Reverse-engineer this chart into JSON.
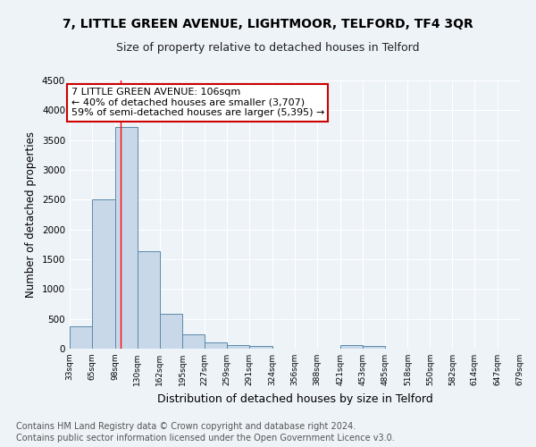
{
  "title1": "7, LITTLE GREEN AVENUE, LIGHTMOOR, TELFORD, TF4 3QR",
  "title2": "Size of property relative to detached houses in Telford",
  "xlabel": "Distribution of detached houses by size in Telford",
  "ylabel": "Number of detached properties",
  "footnote1": "Contains HM Land Registry data © Crown copyright and database right 2024.",
  "footnote2": "Contains public sector information licensed under the Open Government Licence v3.0.",
  "bar_edges": [
    33,
    65,
    98,
    130,
    162,
    195,
    227,
    259,
    291,
    324,
    356,
    388,
    421,
    453,
    485,
    518,
    550,
    582,
    614,
    647,
    679
  ],
  "bar_heights": [
    370,
    2510,
    3720,
    1630,
    590,
    240,
    100,
    60,
    50,
    0,
    0,
    0,
    60,
    50,
    0,
    0,
    0,
    0,
    0,
    0
  ],
  "tick_labels": [
    "33sqm",
    "65sqm",
    "98sqm",
    "130sqm",
    "162sqm",
    "195sqm",
    "227sqm",
    "259sqm",
    "291sqm",
    "324sqm",
    "356sqm",
    "388sqm",
    "421sqm",
    "453sqm",
    "485sqm",
    "518sqm",
    "550sqm",
    "582sqm",
    "614sqm",
    "647sqm",
    "679sqm"
  ],
  "bar_color": "#c8d8e8",
  "bar_edge_color": "#5a8aaa",
  "red_line_x": 106,
  "annotation_text": "7 LITTLE GREEN AVENUE: 106sqm\n← 40% of detached houses are smaller (3,707)\n59% of semi-detached houses are larger (5,395) →",
  "annotation_box_color": "#ffffff",
  "annotation_box_edge": "#cc0000",
  "annotation_fontsize": 8,
  "ylim": [
    0,
    4500
  ],
  "background_color": "#eef3f8",
  "grid_color": "#ffffff",
  "title1_fontsize": 10,
  "title2_fontsize": 9,
  "xlabel_fontsize": 9,
  "ylabel_fontsize": 8.5,
  "footnote_fontsize": 7,
  "yticks": [
    0,
    500,
    1000,
    1500,
    2000,
    2500,
    3000,
    3500,
    4000,
    4500
  ]
}
